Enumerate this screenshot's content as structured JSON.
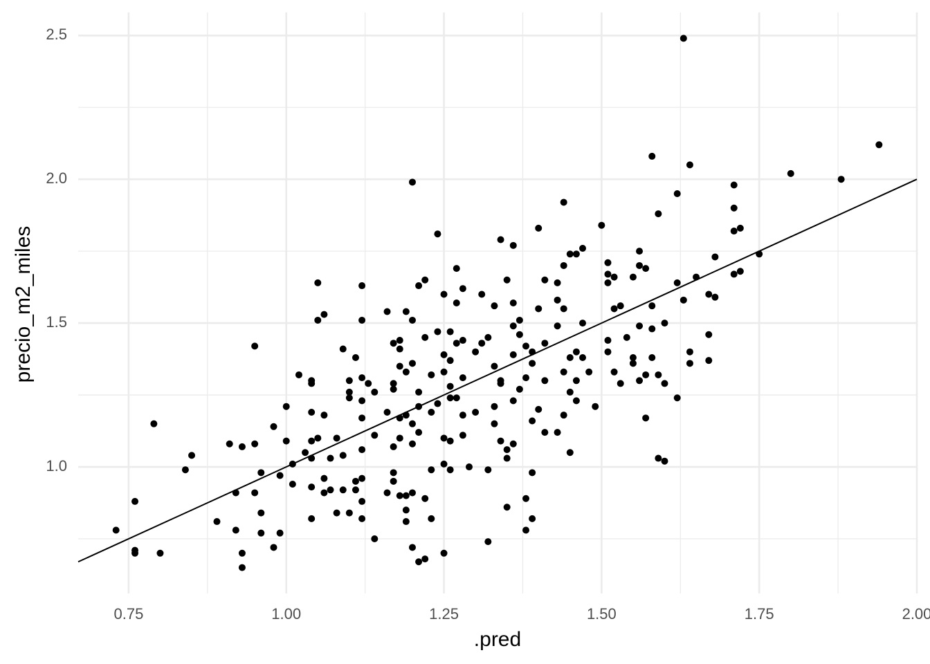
{
  "chart_data": {
    "type": "scatter",
    "x_label": ".pred",
    "y_label": "precio_m2_miles",
    "xlim": [
      0.67,
      2.0
    ],
    "ylim": [
      0.56,
      2.58
    ],
    "xticks": [
      {
        "value": 0.75,
        "label": "0.75"
      },
      {
        "value": 1.0,
        "label": "1.00"
      },
      {
        "value": 1.25,
        "label": "1.25"
      },
      {
        "value": 1.5,
        "label": "1.50"
      },
      {
        "value": 1.75,
        "label": "1.75"
      },
      {
        "value": 2.0,
        "label": "2.00"
      }
    ],
    "yticks": [
      {
        "value": 1.0,
        "label": "1.0"
      },
      {
        "value": 1.5,
        "label": "1.5"
      },
      {
        "value": 2.0,
        "label": "2.0"
      },
      {
        "value": 2.5,
        "label": "2.5"
      }
    ],
    "xminor": [
      0.875,
      1.125,
      1.375,
      1.625,
      1.875
    ],
    "yminor": [
      0.75,
      1.25,
      1.75,
      2.25
    ],
    "grid": true,
    "reference_line": {
      "intercept": 0,
      "slope": 1,
      "color": "#000000"
    },
    "series": [
      {
        "color": "#000000",
        "x": [
          0.73,
          0.76,
          0.76,
          0.76,
          0.79,
          0.8,
          0.84,
          0.85,
          0.89,
          0.91,
          0.92,
          0.92,
          0.93,
          0.93,
          0.93,
          0.95,
          0.95,
          0.95,
          0.96,
          0.96,
          0.96,
          0.98,
          0.98,
          0.99,
          0.99,
          1.0,
          1.0,
          1.01,
          1.01,
          1.02,
          1.03,
          1.04,
          1.04,
          1.04,
          1.04,
          1.04,
          1.04,
          1.04,
          1.05,
          1.05,
          1.05,
          1.06,
          1.06,
          1.06,
          1.06,
          1.07,
          1.07,
          1.08,
          1.08,
          1.09,
          1.09,
          1.09,
          1.1,
          1.1,
          1.1,
          1.1,
          1.11,
          1.11,
          1.11,
          1.12,
          1.12,
          1.12,
          1.12,
          1.12,
          1.12,
          1.12,
          1.12,
          1.12,
          1.13,
          1.14,
          1.14,
          1.14,
          1.16,
          1.16,
          1.16,
          1.17,
          1.17,
          1.17,
          1.17,
          1.17,
          1.17,
          1.18,
          1.18,
          1.18,
          1.18,
          1.18,
          1.18,
          1.19,
          1.19,
          1.19,
          1.19,
          1.19,
          1.19,
          1.2,
          1.2,
          1.2,
          1.2,
          1.2,
          1.2,
          1.2,
          1.21,
          1.21,
          1.21,
          1.21,
          1.21,
          1.22,
          1.22,
          1.22,
          1.22,
          1.23,
          1.23,
          1.23,
          1.23,
          1.24,
          1.24,
          1.24,
          1.25,
          1.25,
          1.25,
          1.25,
          1.25,
          1.26,
          1.25,
          1.26,
          1.26,
          1.26,
          1.26,
          1.26,
          1.27,
          1.27,
          1.27,
          1.27,
          1.28,
          1.28,
          1.28,
          1.28,
          1.28,
          1.29,
          1.3,
          1.3,
          1.31,
          1.31,
          1.32,
          1.32,
          1.32,
          1.33,
          1.33,
          1.33,
          1.33,
          1.34,
          1.34,
          1.34,
          1.34,
          1.35,
          1.35,
          1.35,
          1.35,
          1.36,
          1.36,
          1.36,
          1.36,
          1.36,
          1.36,
          1.37,
          1.37,
          1.37,
          1.38,
          1.38,
          1.38,
          1.38,
          1.39,
          1.39,
          1.39,
          1.39,
          1.39,
          1.4,
          1.4,
          1.4,
          1.41,
          1.41,
          1.41,
          1.41,
          1.43,
          1.43,
          1.43,
          1.43,
          1.44,
          1.44,
          1.44,
          1.44,
          1.44,
          1.45,
          1.45,
          1.45,
          1.45,
          1.46,
          1.46,
          1.46,
          1.46,
          1.47,
          1.47,
          1.47,
          1.48,
          1.49,
          1.5,
          1.51,
          1.51,
          1.51,
          1.51,
          1.51,
          1.52,
          1.52,
          1.52,
          1.53,
          1.53,
          1.54,
          1.55,
          1.55,
          1.55,
          1.56,
          1.56,
          1.56,
          1.56,
          1.57,
          1.57,
          1.57,
          1.58,
          1.58,
          1.58,
          1.58,
          1.59,
          1.59,
          1.59,
          1.6,
          1.6,
          1.6,
          1.62,
          1.62,
          1.62,
          1.63,
          1.63,
          1.64,
          1.64,
          1.64,
          1.65,
          1.67,
          1.67,
          1.67,
          1.68,
          1.68,
          1.71,
          1.71,
          1.71,
          1.71,
          1.72,
          1.72,
          1.75,
          1.8,
          1.88,
          1.94
        ],
        "values": [
          0.78,
          0.88,
          0.71,
          0.7,
          1.15,
          0.7,
          0.99,
          1.04,
          0.81,
          1.08,
          0.91,
          0.78,
          1.07,
          0.7,
          0.65,
          1.42,
          0.91,
          1.08,
          0.84,
          0.98,
          0.77,
          1.14,
          0.72,
          0.97,
          0.77,
          1.21,
          1.09,
          0.94,
          1.01,
          1.32,
          1.05,
          1.19,
          1.29,
          1.3,
          1.09,
          1.03,
          0.93,
          0.82,
          1.1,
          1.51,
          1.64,
          1.18,
          1.53,
          0.96,
          0.91,
          1.03,
          0.92,
          1.1,
          0.84,
          1.41,
          1.04,
          0.92,
          1.3,
          1.26,
          1.24,
          0.84,
          1.38,
          0.92,
          0.95,
          1.63,
          1.51,
          1.31,
          1.17,
          1.23,
          0.82,
          0.96,
          0.88,
          1.06,
          1.29,
          1.26,
          1.11,
          0.75,
          1.19,
          1.54,
          0.91,
          1.07,
          1.43,
          1.29,
          0.98,
          0.95,
          1.27,
          1.41,
          0.9,
          1.17,
          1.44,
          1.35,
          1.1,
          0.81,
          0.9,
          0.85,
          1.54,
          1.33,
          1.18,
          1.99,
          1.51,
          1.36,
          1.15,
          1.08,
          0.91,
          0.72,
          0.67,
          1.26,
          1.63,
          1.21,
          1.12,
          0.68,
          0.89,
          1.65,
          1.45,
          0.99,
          0.82,
          1.32,
          1.19,
          1.47,
          1.22,
          1.81,
          0.7,
          1.6,
          1.39,
          1.33,
          1.01,
          1.09,
          1.1,
          1.47,
          1.28,
          1.24,
          0.99,
          1.37,
          1.43,
          1.24,
          1.57,
          1.69,
          1.44,
          1.18,
          1.62,
          1.11,
          1.31,
          1.0,
          1.4,
          1.19,
          1.43,
          1.6,
          0.99,
          1.45,
          0.74,
          1.15,
          1.21,
          1.56,
          1.35,
          1.29,
          1.3,
          1.79,
          1.09,
          0.86,
          1.65,
          1.03,
          1.06,
          1.77,
          1.57,
          1.49,
          1.39,
          1.23,
          1.08,
          1.27,
          1.46,
          1.51,
          1.42,
          0.89,
          0.78,
          1.31,
          0.98,
          0.82,
          1.4,
          1.36,
          1.16,
          1.83,
          1.2,
          1.55,
          1.65,
          1.43,
          1.3,
          1.12,
          1.12,
          1.49,
          1.64,
          1.58,
          1.7,
          1.92,
          1.18,
          1.33,
          1.55,
          1.74,
          1.38,
          1.05,
          1.26,
          1.74,
          1.4,
          1.3,
          1.23,
          1.76,
          1.5,
          1.38,
          1.33,
          1.21,
          1.84,
          1.4,
          1.67,
          1.64,
          1.71,
          1.44,
          1.33,
          1.55,
          1.66,
          1.29,
          1.56,
          1.45,
          1.66,
          1.38,
          1.36,
          1.75,
          1.7,
          1.49,
          1.3,
          1.69,
          1.17,
          1.32,
          1.56,
          2.08,
          1.38,
          1.48,
          1.03,
          1.88,
          1.32,
          1.02,
          1.29,
          1.5,
          1.95,
          1.64,
          1.24,
          1.58,
          2.49,
          2.05,
          1.4,
          1.36,
          1.66,
          1.6,
          1.46,
          1.37,
          1.59,
          1.73,
          1.98,
          1.9,
          1.82,
          1.67,
          1.68,
          1.83,
          1.74,
          2.02,
          2.0,
          2.12
        ]
      }
    ]
  }
}
